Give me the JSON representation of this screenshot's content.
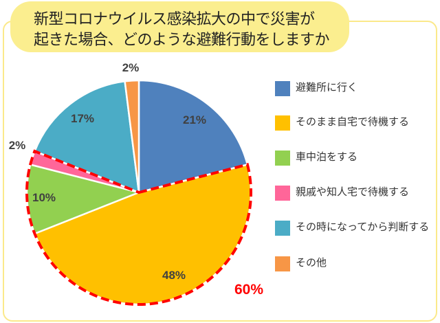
{
  "title": {
    "line1": "新型コロナウイルス感染拡大の中で災害が",
    "line2": "起きた場合、どのような避難行動をしますか"
  },
  "chart_data": {
    "type": "pie",
    "categories": [
      "避難所に行く",
      "そのまま自宅で待機する",
      "車中泊をする",
      "親戚や知人宅で待機する",
      "その時になってから判断する",
      "その他"
    ],
    "values": [
      21,
      48,
      10,
      2,
      17,
      2
    ],
    "labels": [
      "21%",
      "48%",
      "10%",
      "2%",
      "17%",
      "2%"
    ],
    "colors": [
      "#4f81bd",
      "#ffc000",
      "#92d050",
      "#ff6699",
      "#4bacc6",
      "#f79646"
    ],
    "legend_position": "right",
    "annotation": {
      "text": "60%",
      "color": "#ff0000",
      "covers": [
        "そのまま自宅で待機する",
        "車中泊をする",
        "親戚や知人宅で待機する"
      ]
    }
  }
}
